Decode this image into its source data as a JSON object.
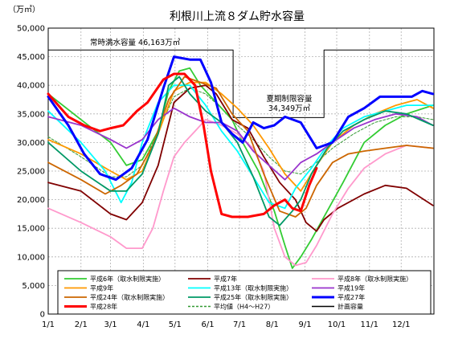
{
  "chart_data": {
    "type": "line",
    "title": "利根川上流８ダム貯水容量",
    "y_unit": "（万㎥）",
    "ylim": [
      0,
      50000
    ],
    "y_ticks": [
      "0",
      "5,000",
      "10,000",
      "15,000",
      "20,000",
      "25,000",
      "30,000",
      "35,000",
      "40,000",
      "45,000",
      "50,000"
    ],
    "x_ticks": [
      "1/1",
      "2/1",
      "3/1",
      "4/1",
      "5/1",
      "6/1",
      "7/1",
      "8/1",
      "9/1",
      "10/1",
      "11/1",
      "12/1"
    ],
    "grid": true,
    "annotations": {
      "normal_capacity": "常時満水容量 46,163万㎥",
      "summer_limit_title": "夏期制限容量",
      "summer_limit_value": "34,349万㎥"
    },
    "legend_position": "bottom",
    "series": [
      {
        "name": "平成6年（取水制限実施）",
        "color": "#33cc33",
        "width": 1.8,
        "points": [
          [
            1,
            38500
          ],
          [
            32,
            34000
          ],
          [
            60,
            30000
          ],
          [
            75,
            26000
          ],
          [
            90,
            27000
          ],
          [
            105,
            32000
          ],
          [
            115,
            39000
          ],
          [
            125,
            42500
          ],
          [
            135,
            43000
          ],
          [
            145,
            40000
          ],
          [
            160,
            37000
          ],
          [
            175,
            34000
          ],
          [
            185,
            30000
          ],
          [
            200,
            25000
          ],
          [
            215,
            18000
          ],
          [
            225,
            12000
          ],
          [
            232,
            8000
          ],
          [
            240,
            10000
          ],
          [
            250,
            13000
          ],
          [
            265,
            18000
          ],
          [
            280,
            23000
          ],
          [
            300,
            30000
          ],
          [
            320,
            33000
          ],
          [
            340,
            35000
          ],
          [
            365,
            36500
          ]
        ]
      },
      {
        "name": "平成7年",
        "color": "#800000",
        "width": 1.8,
        "points": [
          [
            1,
            23000
          ],
          [
            32,
            21500
          ],
          [
            60,
            17500
          ],
          [
            75,
            16500
          ],
          [
            90,
            19500
          ],
          [
            105,
            26000
          ],
          [
            120,
            37000
          ],
          [
            135,
            39500
          ],
          [
            150,
            40000
          ],
          [
            160,
            38500
          ],
          [
            175,
            34000
          ],
          [
            190,
            32500
          ],
          [
            205,
            27500
          ],
          [
            220,
            23000
          ],
          [
            235,
            20000
          ],
          [
            245,
            16000
          ],
          [
            255,
            14500
          ],
          [
            262,
            16500
          ],
          [
            275,
            18500
          ],
          [
            300,
            21000
          ],
          [
            320,
            22500
          ],
          [
            340,
            22000
          ],
          [
            365,
            19000
          ]
        ]
      },
      {
        "name": "平成8年（取水制限実施）",
        "color": "#ff99cc",
        "width": 1.8,
        "points": [
          [
            1,
            18500
          ],
          [
            32,
            16000
          ],
          [
            60,
            13500
          ],
          [
            75,
            11500
          ],
          [
            90,
            11500
          ],
          [
            100,
            15000
          ],
          [
            110,
            21500
          ],
          [
            120,
            27500
          ],
          [
            130,
            30000
          ],
          [
            140,
            32000
          ],
          [
            150,
            34000
          ],
          [
            165,
            33000
          ],
          [
            180,
            31500
          ],
          [
            195,
            29000
          ],
          [
            205,
            25000
          ],
          [
            215,
            15000
          ],
          [
            225,
            10000
          ],
          [
            235,
            8500
          ],
          [
            245,
            9000
          ],
          [
            255,
            12000
          ],
          [
            270,
            17500
          ],
          [
            285,
            22000
          ],
          [
            300,
            25500
          ],
          [
            320,
            28000
          ],
          [
            340,
            29500
          ],
          [
            365,
            29000
          ]
        ]
      },
      {
        "name": "平成9年",
        "color": "#ff9900",
        "width": 1.8,
        "points": [
          [
            1,
            30500
          ],
          [
            32,
            28000
          ],
          [
            60,
            25000
          ],
          [
            75,
            23500
          ],
          [
            90,
            25000
          ],
          [
            105,
            31500
          ],
          [
            120,
            39000
          ],
          [
            135,
            40500
          ],
          [
            150,
            40500
          ],
          [
            165,
            38500
          ],
          [
            180,
            36000
          ],
          [
            195,
            33000
          ],
          [
            210,
            29000
          ],
          [
            225,
            24500
          ],
          [
            240,
            21500
          ],
          [
            255,
            26000
          ],
          [
            270,
            30000
          ],
          [
            290,
            33000
          ],
          [
            310,
            35000
          ],
          [
            330,
            36500
          ],
          [
            350,
            37500
          ],
          [
            365,
            36000
          ]
        ]
      },
      {
        "name": "平成13年（取水制限実施）",
        "color": "#00ffff",
        "width": 1.8,
        "points": [
          [
            1,
            35500
          ],
          [
            32,
            30000
          ],
          [
            55,
            25000
          ],
          [
            70,
            19500
          ],
          [
            80,
            23000
          ],
          [
            90,
            30000
          ],
          [
            105,
            37000
          ],
          [
            120,
            40000
          ],
          [
            135,
            40000
          ],
          [
            150,
            36500
          ],
          [
            165,
            32000
          ],
          [
            180,
            28500
          ],
          [
            195,
            24000
          ],
          [
            210,
            19500
          ],
          [
            225,
            18500
          ],
          [
            235,
            22000
          ],
          [
            250,
            25500
          ],
          [
            265,
            29500
          ],
          [
            280,
            32500
          ],
          [
            300,
            34500
          ],
          [
            320,
            35500
          ],
          [
            340,
            36500
          ],
          [
            365,
            36500
          ]
        ]
      },
      {
        "name": "平成19年",
        "color": "#9933cc",
        "width": 1.8,
        "points": [
          [
            1,
            34500
          ],
          [
            32,
            33000
          ],
          [
            60,
            30500
          ],
          [
            75,
            29000
          ],
          [
            90,
            30500
          ],
          [
            105,
            34000
          ],
          [
            120,
            36000
          ],
          [
            135,
            34500
          ],
          [
            150,
            33500
          ],
          [
            165,
            33500
          ],
          [
            180,
            32000
          ],
          [
            195,
            28500
          ],
          [
            210,
            26000
          ],
          [
            225,
            23500
          ],
          [
            240,
            26500
          ],
          [
            255,
            28000
          ],
          [
            270,
            30000
          ],
          [
            290,
            32500
          ],
          [
            310,
            34000
          ],
          [
            330,
            35000
          ],
          [
            350,
            34500
          ],
          [
            365,
            33000
          ]
        ]
      },
      {
        "name": "平成24年（取水制限実施）",
        "color": "#cc6600",
        "width": 1.8,
        "points": [
          [
            1,
            26500
          ],
          [
            32,
            23500
          ],
          [
            55,
            21000
          ],
          [
            70,
            22500
          ],
          [
            85,
            24500
          ],
          [
            100,
            29500
          ],
          [
            115,
            37500
          ],
          [
            130,
            41500
          ],
          [
            145,
            40500
          ],
          [
            160,
            39500
          ],
          [
            175,
            35000
          ],
          [
            190,
            32000
          ],
          [
            205,
            24500
          ],
          [
            220,
            18000
          ],
          [
            235,
            17000
          ],
          [
            245,
            18500
          ],
          [
            255,
            22500
          ],
          [
            270,
            26500
          ],
          [
            285,
            28000
          ],
          [
            300,
            28500
          ],
          [
            320,
            29000
          ],
          [
            340,
            29500
          ],
          [
            365,
            29000
          ]
        ]
      },
      {
        "name": "平成25年（取水制限実施）",
        "color": "#009966",
        "width": 1.8,
        "points": [
          [
            1,
            30000
          ],
          [
            32,
            25000
          ],
          [
            60,
            21500
          ],
          [
            75,
            21500
          ],
          [
            90,
            24500
          ],
          [
            105,
            31500
          ],
          [
            115,
            40000
          ],
          [
            125,
            41500
          ],
          [
            135,
            38500
          ],
          [
            150,
            35500
          ],
          [
            165,
            33500
          ],
          [
            180,
            30000
          ],
          [
            195,
            24000
          ],
          [
            210,
            17000
          ],
          [
            220,
            15500
          ],
          [
            232,
            18000
          ],
          [
            240,
            20000
          ],
          [
            250,
            24500
          ],
          [
            265,
            29000
          ],
          [
            280,
            32000
          ],
          [
            300,
            34000
          ],
          [
            320,
            35500
          ],
          [
            340,
            35000
          ],
          [
            365,
            33000
          ]
        ]
      },
      {
        "name": "平成27年",
        "color": "#0000ff",
        "width": 3,
        "points": [
          [
            1,
            38000
          ],
          [
            20,
            33000
          ],
          [
            35,
            28000
          ],
          [
            50,
            24500
          ],
          [
            65,
            23500
          ],
          [
            80,
            25500
          ],
          [
            95,
            30500
          ],
          [
            110,
            39500
          ],
          [
            120,
            45000
          ],
          [
            135,
            44500
          ],
          [
            145,
            44500
          ],
          [
            155,
            40500
          ],
          [
            165,
            33500
          ],
          [
            175,
            31500
          ],
          [
            185,
            30000
          ],
          [
            195,
            33500
          ],
          [
            205,
            32500
          ],
          [
            215,
            33000
          ],
          [
            225,
            34500
          ],
          [
            240,
            33500
          ],
          [
            255,
            29000
          ],
          [
            270,
            30000
          ],
          [
            285,
            34500
          ],
          [
            300,
            36000
          ],
          [
            315,
            38000
          ],
          [
            330,
            38000
          ],
          [
            345,
            38000
          ],
          [
            355,
            39000
          ],
          [
            365,
            38500
          ]
        ]
      },
      {
        "name": "平成28年",
        "color": "#ff0000",
        "width": 3,
        "points": [
          [
            1,
            38500
          ],
          [
            20,
            34500
          ],
          [
            35,
            33000
          ],
          [
            50,
            32000
          ],
          [
            60,
            32500
          ],
          [
            72,
            33000
          ],
          [
            85,
            35500
          ],
          [
            95,
            37000
          ],
          [
            110,
            41000
          ],
          [
            120,
            42000
          ],
          [
            130,
            42000
          ],
          [
            140,
            40000
          ],
          [
            148,
            33000
          ],
          [
            155,
            25000
          ],
          [
            165,
            17500
          ],
          [
            175,
            17000
          ],
          [
            190,
            17000
          ],
          [
            205,
            17500
          ],
          [
            215,
            19000
          ],
          [
            225,
            20000
          ],
          [
            232,
            18500
          ],
          [
            240,
            18000
          ],
          [
            248,
            22500
          ],
          [
            255,
            25500
          ]
        ]
      },
      {
        "name": "平均値（H4～H27）",
        "color": "#339933",
        "width": 1,
        "dash": true,
        "points": [
          [
            1,
            31000
          ],
          [
            32,
            27500
          ],
          [
            60,
            24000
          ],
          [
            75,
            24000
          ],
          [
            90,
            26000
          ],
          [
            105,
            32000
          ],
          [
            120,
            38000
          ],
          [
            135,
            39500
          ],
          [
            150,
            38500
          ],
          [
            165,
            36000
          ],
          [
            180,
            33000
          ],
          [
            195,
            30500
          ],
          [
            210,
            27500
          ],
          [
            225,
            25000
          ],
          [
            240,
            24500
          ],
          [
            255,
            26500
          ],
          [
            270,
            29000
          ],
          [
            290,
            31500
          ],
          [
            310,
            33500
          ],
          [
            330,
            34500
          ],
          [
            350,
            34500
          ],
          [
            365,
            34000
          ]
        ]
      },
      {
        "name": "計画容量",
        "color": "#000000",
        "width": 1,
        "points": [
          [
            1,
            46163
          ],
          [
            176,
            46163
          ],
          [
            176,
            34349
          ],
          [
            262,
            34349
          ],
          [
            262,
            46163
          ],
          [
            365,
            46163
          ]
        ]
      }
    ]
  }
}
